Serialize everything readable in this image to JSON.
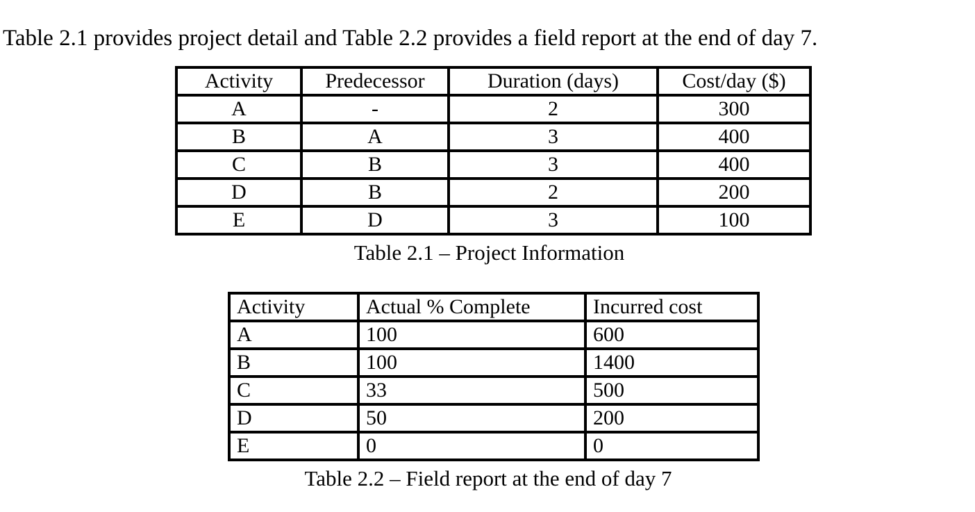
{
  "page": {
    "intro_text": "Table 2.1 provides project detail and Table 2.2 provides a field report at the end of day 7."
  },
  "colors": {
    "text": "#000000",
    "background": "#ffffff",
    "table_border": "#000000"
  },
  "table1": {
    "caption": "Table 2.1 – Project Information",
    "headers": [
      "Activity",
      "Predecessor",
      "Duration (days)",
      "Cost/day ($)"
    ],
    "rows": [
      [
        "A",
        "-",
        "2",
        "300"
      ],
      [
        "B",
        "A",
        "3",
        "400"
      ],
      [
        "C",
        "B",
        "3",
        "400"
      ],
      [
        "D",
        "B",
        "2",
        "200"
      ],
      [
        "E",
        "D",
        "3",
        "100"
      ]
    ]
  },
  "table2": {
    "caption": "Table 2.2 – Field report at the end of day 7",
    "headers": [
      "Activity",
      "Actual % Complete",
      "Incurred cost"
    ],
    "rows": [
      [
        "A",
        "100",
        "600"
      ],
      [
        "B",
        "100",
        "1400"
      ],
      [
        "C",
        "33",
        "500"
      ],
      [
        "D",
        "50",
        "200"
      ],
      [
        "E",
        "0",
        "0"
      ]
    ]
  }
}
